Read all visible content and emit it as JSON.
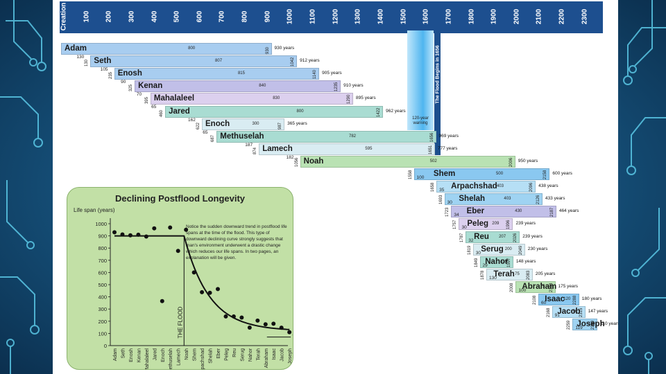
{
  "timeline": {
    "axis_labels": [
      "Creation",
      "100",
      "200",
      "300",
      "400",
      "500",
      "600",
      "700",
      "800",
      "900",
      "1000",
      "1100",
      "1200",
      "1300",
      "1400",
      "1500",
      "1600",
      "1700",
      "1800",
      "1900",
      "2000",
      "2100",
      "2200",
      "2300",
      "2400"
    ],
    "flood_label": "The Flood Begins in 1656",
    "warning_label": "120-year warning",
    "patriarchs": [
      {
        "name": "Adam",
        "start": 0,
        "end": 930,
        "mid": "800",
        "life": "930 years",
        "color": "#a8cdf0"
      },
      {
        "name": "Seth",
        "start": 130,
        "end": 1042,
        "mid": "807",
        "life": "912 years",
        "color": "#a8cdf0"
      },
      {
        "name": "Enosh",
        "start": 235,
        "end": 1140,
        "mid": "815",
        "life": "905 years",
        "color": "#a8cdf0"
      },
      {
        "name": "Kenan",
        "start": 325,
        "end": 1235,
        "mid": "840",
        "life": "910 years",
        "color": "#c1bfe8"
      },
      {
        "name": "Mahalaleel",
        "start": 395,
        "end": 1290,
        "mid": "830",
        "life": "895 years",
        "color": "#dcd0ee"
      },
      {
        "name": "Jared",
        "start": 460,
        "end": 1422,
        "mid": "800",
        "life": "962 years",
        "color": "#a9dcd2"
      },
      {
        "name": "Enoch",
        "start": 622,
        "end": 987,
        "mid": "300",
        "life": "365 years",
        "color": "#d9ecf2"
      },
      {
        "name": "Methuselah",
        "start": 687,
        "end": 1656,
        "mid": "782",
        "life": "969 years",
        "color": "#a9dcd2"
      },
      {
        "name": "Lamech",
        "start": 874,
        "end": 1651,
        "mid": "595",
        "life": "777 years",
        "color": "#d9ecf2"
      },
      {
        "name": "Noah",
        "start": 1056,
        "end": 2006,
        "mid": "502",
        "life": "950 years",
        "color": "#b9e2b3"
      },
      {
        "name": "Shem",
        "start": 1558,
        "end": 2158,
        "mid": "500",
        "life": "600 years",
        "color": "#8ac8f0"
      },
      {
        "name": "Arpachshad",
        "start": 1658,
        "end": 2096,
        "mid": "403",
        "life": "438 years",
        "color": "#b6dff5"
      },
      {
        "name": "Shelah",
        "start": 1693,
        "end": 2126,
        "mid": "403",
        "life": "433 years",
        "color": "#9fd3f2"
      },
      {
        "name": "Eber",
        "start": 1723,
        "end": 2187,
        "mid": "430",
        "life": "464 years",
        "color": "#c1bfe8"
      },
      {
        "name": "Peleg",
        "start": 1757,
        "end": 1996,
        "mid": "209",
        "life": "239 years",
        "color": "#dcd0ee"
      },
      {
        "name": "Reu",
        "start": 1787,
        "end": 2026,
        "mid": "207",
        "life": "239 years",
        "color": "#a9dcd2"
      },
      {
        "name": "Serug",
        "start": 1819,
        "end": 2049,
        "mid": "200",
        "life": "230 years",
        "color": "#d9ecf2"
      },
      {
        "name": "Nahor",
        "start": 1849,
        "end": 1997,
        "mid": "119",
        "life": "148 years",
        "color": "#a9dcd2"
      },
      {
        "name": "Terah",
        "start": 1878,
        "end": 2083,
        "mid": "75",
        "life": "205 years",
        "color": "#d9ecf2"
      },
      {
        "name": "Abraham",
        "start": 2008,
        "end": 2183,
        "mid": "75",
        "life": "175 years",
        "color": "#b9e2b3"
      },
      {
        "name": "Isaac",
        "start": 2108,
        "end": 2288,
        "mid": "120",
        "life": "180 years",
        "color": "#8ac8f0"
      },
      {
        "name": "Jacob",
        "start": 2168,
        "end": 2315,
        "mid": "56",
        "life": "147 years",
        "color": "#b6dff5"
      },
      {
        "name": "Joseph",
        "start": 2259,
        "end": 2369,
        "mid": "110",
        "life": "110 years",
        "color": "#9fd3f2"
      }
    ],
    "begat_ages": [
      "130",
      "105",
      "90",
      "70",
      "65",
      "162",
      "65",
      "187",
      "182"
    ],
    "start_years": [
      "130",
      "235",
      "325",
      "395",
      "460",
      "622",
      "687",
      "874",
      "1056",
      "1558",
      "1658",
      "1693",
      "1723",
      "1757",
      "1787",
      "1819",
      "1849",
      "1878",
      "2008",
      "2108",
      "2168",
      "2259"
    ],
    "end_years": [
      "930",
      "1042",
      "1140",
      "1235",
      "1290",
      "1422",
      "987",
      "1656",
      "1651",
      "2006",
      "2158",
      "2096",
      "2126",
      "2187",
      "1996",
      "2026",
      "2049",
      "1997",
      "2083",
      "2183",
      "2288",
      "2315",
      "2369"
    ],
    "postflood_ages": [
      "100",
      "35",
      "30",
      "34",
      "30",
      "32",
      "30",
      "29",
      "130",
      "100",
      "60",
      "91",
      "119"
    ]
  },
  "inset": {
    "title": "Declining Postflood Longevity",
    "y_axis_label": "Life span (years)",
    "flood_line_label": "THE FLOOD",
    "end_label": "70 years",
    "note": "Notice the sudden downward trend in postflood life spans at the time of the flood. This type of downward declining curve strongly suggests that man's environment underwent a drastic change which reduces our life spans. In two pages, an explanation will be given."
  },
  "chart_data": {
    "type": "scatter",
    "title": "Declining Postflood Longevity",
    "ylabel": "Life span (years)",
    "ylim": [
      0,
      1000
    ],
    "yticks": [
      0,
      100,
      200,
      300,
      400,
      500,
      600,
      700,
      800,
      900,
      1000
    ],
    "categories": [
      "Adam",
      "Seth",
      "Enosh",
      "Kenan",
      "Mahalaleel",
      "Jared",
      "Enoch",
      "Methuselah",
      "Lamech",
      "Noah",
      "Shem",
      "Arpachshad",
      "Shelah",
      "Eber",
      "Peleg",
      "Reu",
      "Serug",
      "Nahor",
      "Terah",
      "Abraham",
      "Isaac",
      "Jacob",
      "Joseph"
    ],
    "values": [
      930,
      912,
      905,
      910,
      895,
      962,
      365,
      969,
      777,
      950,
      600,
      438,
      433,
      464,
      239,
      239,
      230,
      148,
      205,
      175,
      180,
      147,
      110
    ],
    "reference_line": 70,
    "annotation": "THE FLOOD"
  },
  "colors": {
    "axis_bar": "#1d4f8f",
    "inset_bg": "#c2e0a6",
    "background": "#154f78"
  }
}
